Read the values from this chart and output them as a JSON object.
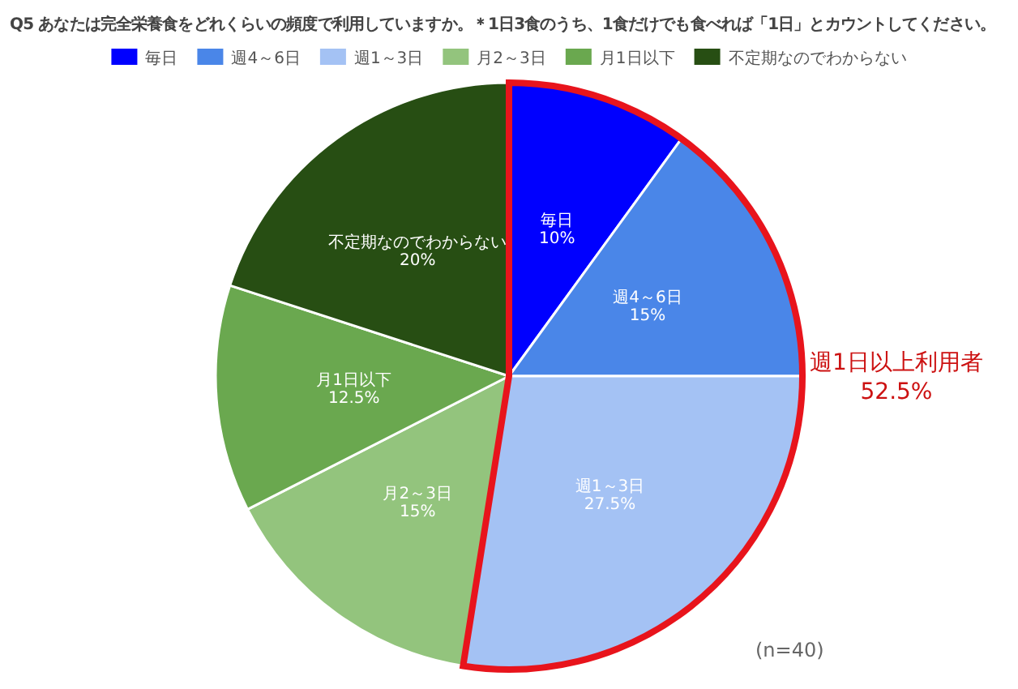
{
  "chart_data": {
    "type": "pie",
    "title": "Q5 あなたは完全栄養食をどれくらいの頻度で利用していますか。＊1日3食のうち、1食だけでも食べれば「1日」とカウントしてください。",
    "categories": [
      "毎日",
      "週4～6日",
      "週1～3日",
      "月2～3日",
      "月1日以下",
      "不定期なのでわからない"
    ],
    "values": [
      10,
      15,
      27.5,
      15,
      12.5,
      20
    ],
    "colors": [
      "#0000ff",
      "#4a86e8",
      "#a4c2f4",
      "#93c47d",
      "#6aa84f",
      "#274e13"
    ],
    "value_labels": [
      "10%",
      "15%",
      "27.5%",
      "15%",
      "12.5%",
      "20%"
    ],
    "legend": "top",
    "annotations": [
      "週1日以上利用者",
      "52.5%",
      "(n=40)"
    ]
  }
}
